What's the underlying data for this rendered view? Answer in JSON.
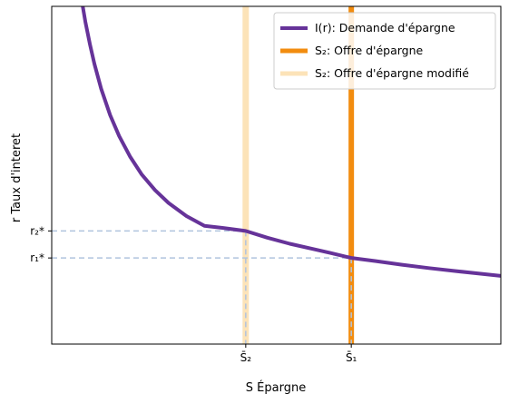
{
  "chart_data": {
    "type": "line",
    "xlabel": "S Épargne",
    "ylabel": "r Taux d'interet",
    "xlim": [
      0,
      100
    ],
    "ylim": [
      0,
      100
    ],
    "grid": false,
    "legend_position": "top-right",
    "x_ticks": [
      {
        "value": 43.2,
        "label": "S̄₂"
      },
      {
        "value": 66.7,
        "label": "S̄₁"
      }
    ],
    "y_ticks": [
      {
        "value": 33.5,
        "label": "r₂*"
      },
      {
        "value": 25.5,
        "label": "r₁*"
      }
    ],
    "series": [
      {
        "name": "I(r): Demande d'épargne",
        "color": "#663399",
        "kind": "curve",
        "x": [
          6.9,
          7.5,
          8.5,
          9.5,
          11,
          13,
          15,
          17.5,
          20,
          23,
          26,
          30,
          34,
          38,
          43.2,
          48,
          53,
          58,
          62,
          66.7,
          72,
          78,
          84,
          90,
          95,
          100
        ],
        "y": [
          100,
          95.4,
          88.8,
          83,
          75.6,
          67.8,
          61.6,
          55.4,
          50.3,
          45.6,
          41.8,
          37.9,
          35,
          34.4,
          33.5,
          31.5,
          29.7,
          28.2,
          27,
          25.5,
          24.6,
          23.5,
          22.5,
          21.6,
          20.9,
          20.2
        ]
      },
      {
        "name": "S₂: Offre d'épargne",
        "color": "#F28C0F",
        "kind": "vertical",
        "x": 66.7
      },
      {
        "name": "S₂: Offre d'épargne modifié",
        "color": "#FCE3B8",
        "kind": "vertical",
        "x": 43.2
      }
    ],
    "guides": [
      {
        "y": 33.5,
        "x_end": 43.2,
        "color": "#B0C4DE"
      },
      {
        "y": 25.5,
        "x_end": 66.7,
        "color": "#B0C4DE"
      }
    ]
  }
}
